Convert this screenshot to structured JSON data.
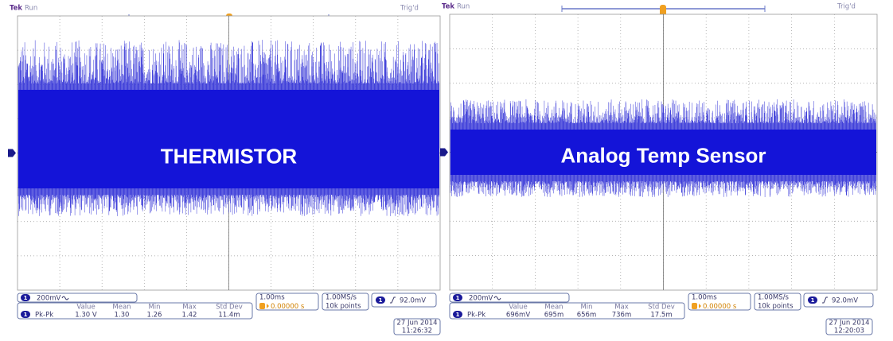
{
  "panels": [
    {
      "brand": "Tek",
      "status": "Run",
      "trigger_status": "Trig'd",
      "label": "THERMISTOR",
      "channel": "1",
      "scale": "200mV",
      "measurement": {
        "headers": [
          "Value",
          "Mean",
          "Min",
          "Max",
          "Std Dev"
        ],
        "name": "Pk-Pk",
        "values": [
          "1.30 V",
          "1.30",
          "1.26",
          "1.42",
          "11.4m"
        ]
      },
      "timebase": "1.00ms",
      "trigger_position": "0.00000 s",
      "sample_rate": "1.00MS/s",
      "record_length": "10k points",
      "trigger_level": "92.0mV",
      "date": "27 Jun 2014",
      "time": "11:26:32"
    },
    {
      "brand": "Tek",
      "status": "Run",
      "trigger_status": "Trig'd",
      "label": "Analog Temp Sensor",
      "channel": "1",
      "scale": "200mV",
      "measurement": {
        "headers": [
          "Value",
          "Mean",
          "Min",
          "Max",
          "Std Dev"
        ],
        "name": "Pk-Pk",
        "values": [
          "696mV",
          "695m",
          "656m",
          "736m",
          "17.5m"
        ]
      },
      "timebase": "1.00ms",
      "trigger_position": "0.00000 s",
      "sample_rate": "1.00MS/s",
      "record_length": "10k points",
      "trigger_level": "92.0mV",
      "date": "27 Jun 2014",
      "time": "12:20:03"
    }
  ]
}
